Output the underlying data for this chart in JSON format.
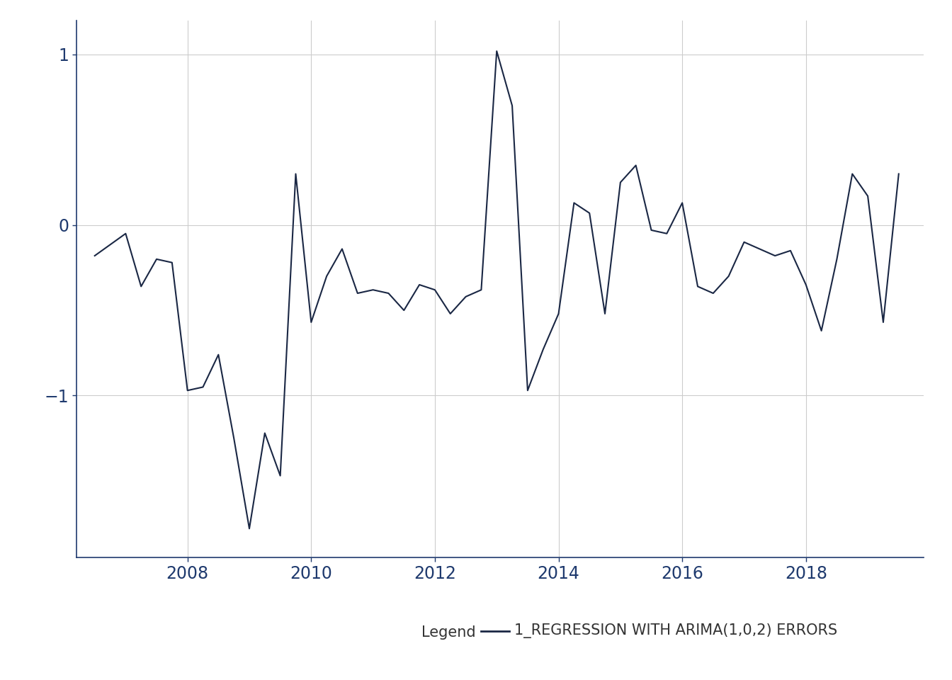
{
  "x": [
    2006.5,
    2007.0,
    2007.25,
    2007.5,
    2007.75,
    2008.0,
    2008.25,
    2008.5,
    2008.75,
    2009.0,
    2009.25,
    2009.5,
    2009.75,
    2010.0,
    2010.25,
    2010.5,
    2010.75,
    2011.0,
    2011.25,
    2011.5,
    2011.75,
    2012.0,
    2012.25,
    2012.5,
    2012.75,
    2013.0,
    2013.25,
    2013.5,
    2013.75,
    2014.0,
    2014.25,
    2014.5,
    2014.75,
    2015.0,
    2015.25,
    2015.5,
    2015.75,
    2016.0,
    2016.25,
    2016.5,
    2016.75,
    2017.0,
    2017.25,
    2017.5,
    2017.75,
    2018.0,
    2018.25,
    2018.5,
    2018.75,
    2019.0,
    2019.25,
    2019.5
  ],
  "y": [
    -0.18,
    -0.05,
    -0.36,
    -0.2,
    -0.22,
    -0.97,
    -0.95,
    -0.76,
    -1.25,
    -1.78,
    -1.22,
    -1.47,
    0.3,
    -0.57,
    -0.3,
    -0.14,
    -0.4,
    -0.38,
    -0.4,
    -0.5,
    -0.35,
    -0.38,
    -0.52,
    -0.42,
    -0.38,
    1.02,
    0.7,
    -0.97,
    -0.73,
    -0.52,
    0.13,
    0.07,
    -0.52,
    0.25,
    0.35,
    -0.03,
    -0.05,
    0.13,
    -0.36,
    -0.4,
    -0.3,
    -0.1,
    -0.14,
    -0.18,
    -0.15,
    -0.35,
    -0.62,
    -0.2,
    0.3,
    0.17,
    -0.57,
    0.3
  ],
  "line_color": "#1a2744",
  "line_width": 1.5,
  "background_color": "#ffffff",
  "plot_background": "#ffffff",
  "grid_color": "#cccccc",
  "tick_color": "#1f3a6e",
  "spine_color": "#1f3a6e",
  "yticks": [
    -1,
    0,
    1
  ],
  "xticks": [
    2008,
    2010,
    2012,
    2014,
    2016,
    2018
  ],
  "xlim": [
    2006.2,
    2019.9
  ],
  "ylim": [
    -1.95,
    1.2
  ],
  "legend_label": "1_REGRESSION WITH ARIMA(1,0,2) ERRORS",
  "legend_title": "Legend",
  "legend_fontsize": 15,
  "tick_fontsize": 17
}
